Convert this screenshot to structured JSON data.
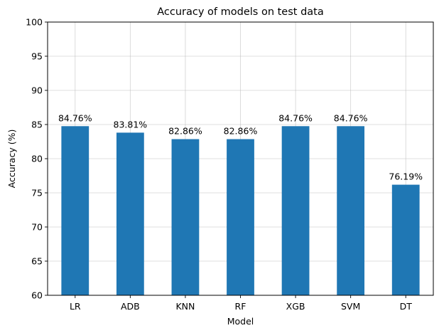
{
  "chart_data": {
    "type": "bar",
    "title": "Accuracy of models on test data",
    "xlabel": "Model",
    "ylabel": "Accuracy (%)",
    "categories": [
      "LR",
      "ADB",
      "KNN",
      "RF",
      "XGB",
      "SVM",
      "DT"
    ],
    "values": [
      84.76,
      83.81,
      82.86,
      82.86,
      84.76,
      84.76,
      76.19
    ],
    "data_labels": [
      "84.76%",
      "83.81%",
      "82.86%",
      "82.86%",
      "84.76%",
      "84.76%",
      "76.19%"
    ],
    "ylim": [
      60,
      100
    ],
    "yticks": [
      60,
      65,
      70,
      75,
      80,
      85,
      90,
      95,
      100
    ],
    "ytick_labels": [
      "60",
      "65",
      "70",
      "75",
      "80",
      "85",
      "90",
      "95",
      "100"
    ],
    "grid": true,
    "bar_color": "#1f77b4"
  }
}
